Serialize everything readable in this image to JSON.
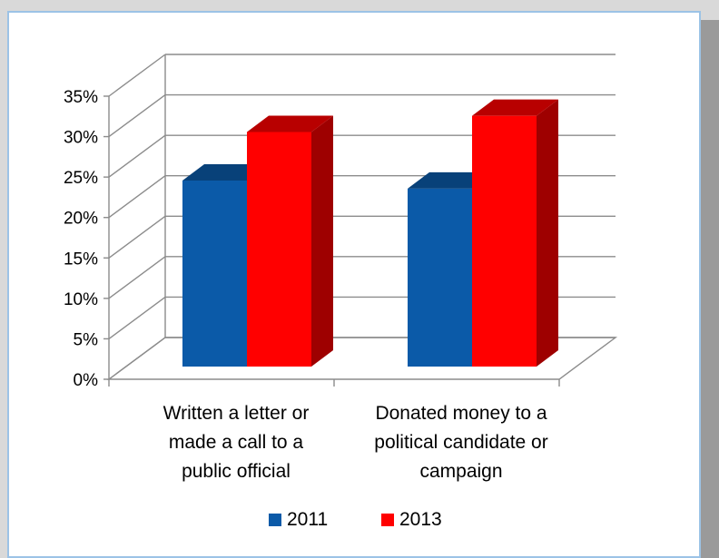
{
  "chart_data": {
    "type": "bar",
    "title": "",
    "xlabel": "",
    "ylabel": "",
    "ylim": [
      0,
      35
    ],
    "y_ticks": [
      "0%",
      "5%",
      "10%",
      "15%",
      "20%",
      "25%",
      "30%",
      "35%"
    ],
    "y_tick_values": [
      0,
      5,
      10,
      15,
      20,
      25,
      30,
      35
    ],
    "grid": true,
    "style": "3d-clustered-column",
    "legend_position": "bottom",
    "categories": [
      [
        "Written a letter or",
        "made a call to a",
        "public official"
      ],
      [
        "Donated money to a",
        "political candidate or",
        "campaign"
      ]
    ],
    "series": [
      {
        "name": "2011",
        "color": "#0b5aa8",
        "values": [
          23,
          22
        ]
      },
      {
        "name": "2013",
        "color": "#ff0000",
        "values": [
          29,
          31
        ]
      }
    ]
  }
}
